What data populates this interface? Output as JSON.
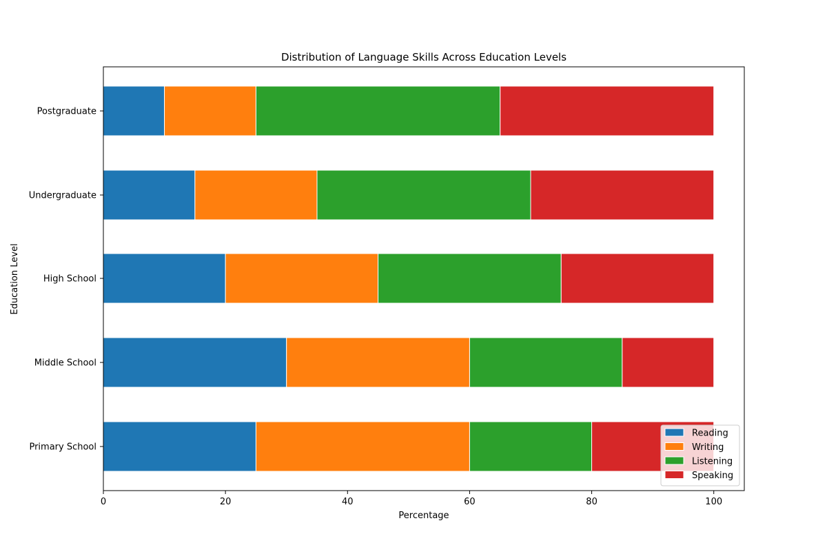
{
  "chart_data": {
    "type": "bar",
    "orientation": "horizontal",
    "stacked": true,
    "title": "Distribution of Language Skills Across Education Levels",
    "xlabel": "Percentage",
    "ylabel": "Education Level",
    "categories": [
      "Primary School",
      "Middle School",
      "High School",
      "Undergraduate",
      "Postgraduate"
    ],
    "series": [
      {
        "name": "Reading",
        "color": "#1f77b4",
        "values": [
          25,
          30,
          20,
          15,
          10
        ]
      },
      {
        "name": "Writing",
        "color": "#ff7f0e",
        "values": [
          35,
          30,
          25,
          20,
          15
        ]
      },
      {
        "name": "Listening",
        "color": "#2ca02c",
        "values": [
          20,
          25,
          30,
          35,
          40
        ]
      },
      {
        "name": "Speaking",
        "color": "#d62728",
        "values": [
          20,
          15,
          25,
          30,
          35
        ]
      }
    ],
    "xlim": [
      0,
      105
    ],
    "xticks": [
      0,
      20,
      40,
      60,
      80,
      100
    ],
    "grid": false,
    "legend_position": "lower-right"
  }
}
